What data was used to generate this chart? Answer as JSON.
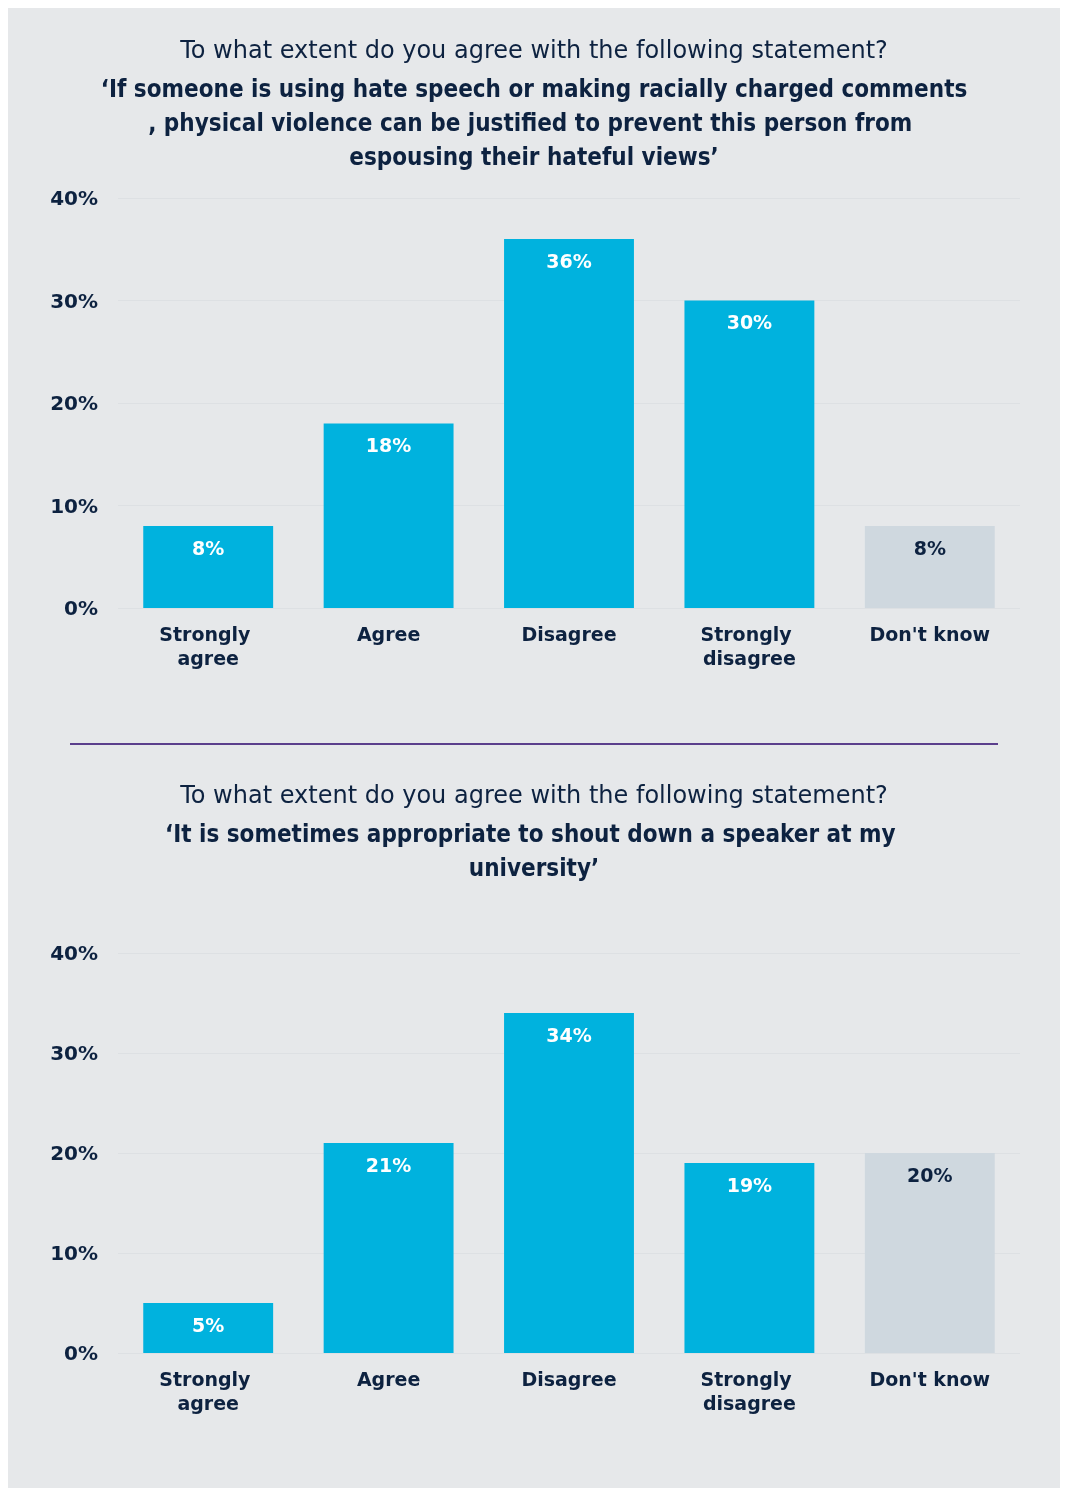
{
  "chart_data": [
    {
      "type": "bar",
      "title": "To what extent do you agree with the following statement?",
      "subtitle": "‘If someone is using hate speech or making racially charged comments, physical violence can be justified to prevent this person from espousing their hateful views’",
      "categories": [
        "Strongly agree",
        "Agree",
        "Disagree",
        "Strongly disagree",
        "Don't know"
      ],
      "values": [
        8,
        18,
        36,
        30,
        8
      ],
      "colors": [
        "#00b2de",
        "#00b2de",
        "#00b2de",
        "#00b2de",
        "#cfd8df"
      ],
      "value_labels": [
        "8%",
        "18%",
        "36%",
        "30%",
        "8%"
      ],
      "ylim": [
        0,
        40
      ],
      "yticks": [
        {
          "value": 0,
          "label": "0%"
        },
        {
          "value": 10,
          "label": "10%"
        },
        {
          "value": 20,
          "label": "20%"
        },
        {
          "value": 30,
          "label": "30%"
        },
        {
          "value": 40,
          "label": "40%"
        }
      ],
      "grid": "y"
    },
    {
      "type": "bar",
      "title": "To what extent do you agree with the following statement?",
      "subtitle": "‘It is sometimes appropriate to shout down a speaker at my university’",
      "categories": [
        "Strongly agree",
        "Agree",
        "Disagree",
        "Strongly disagree",
        "Don't know"
      ],
      "values": [
        5,
        21,
        34,
        19,
        20
      ],
      "colors": [
        "#00b2de",
        "#00b2de",
        "#00b2de",
        "#00b2de",
        "#cfd8df"
      ],
      "value_labels": [
        "5%",
        "21%",
        "34%",
        "19%",
        "20%"
      ],
      "ylim": [
        0,
        40
      ],
      "yticks": [
        {
          "value": 0,
          "label": "0%"
        },
        {
          "value": 10,
          "label": "10%"
        },
        {
          "value": 20,
          "label": "20%"
        },
        {
          "value": 30,
          "label": "30%"
        },
        {
          "value": 40,
          "label": "40%"
        }
      ],
      "grid": "y"
    }
  ]
}
